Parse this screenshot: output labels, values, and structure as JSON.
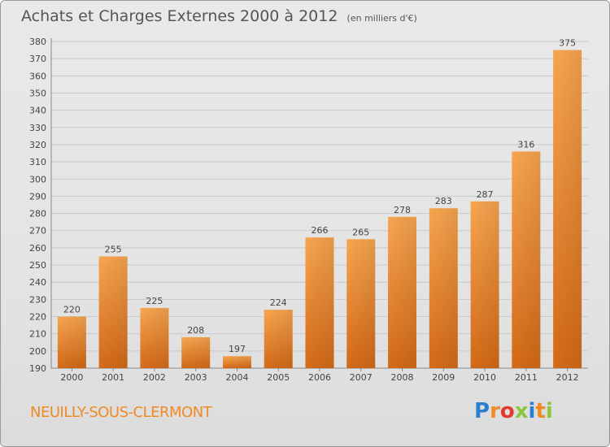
{
  "chart_data": {
    "type": "bar",
    "title": "Achats et Charges Externes 2000 à 2012",
    "subtitle": "(en milliers d'€)",
    "categories": [
      "2000",
      "2001",
      "2002",
      "2003",
      "2004",
      "2005",
      "2006",
      "2007",
      "2008",
      "2009",
      "2010",
      "2011",
      "2012"
    ],
    "values": [
      220,
      255,
      225,
      208,
      197,
      224,
      266,
      265,
      278,
      283,
      287,
      316,
      375
    ],
    "ylim": [
      190,
      380
    ],
    "ytick_step": 10,
    "grid": true,
    "bar_color_top": "#f7a550",
    "bar_color_bottom": "#d46a17",
    "grid_color": "#c8c8c8"
  },
  "footer": {
    "commune": "NEUILLY-SOUS-CLERMONT",
    "logo_letters": [
      {
        "ch": "P",
        "color": "#2a7fd0"
      },
      {
        "ch": "r",
        "color": "#f08a24"
      },
      {
        "ch": "o",
        "color": "#e23a2e"
      },
      {
        "ch": "x",
        "color": "#8cc63e"
      },
      {
        "ch": "i",
        "color": "#2a7fd0"
      },
      {
        "ch": "t",
        "color": "#f08a24"
      },
      {
        "ch": "i",
        "color": "#8cc63e"
      }
    ]
  }
}
